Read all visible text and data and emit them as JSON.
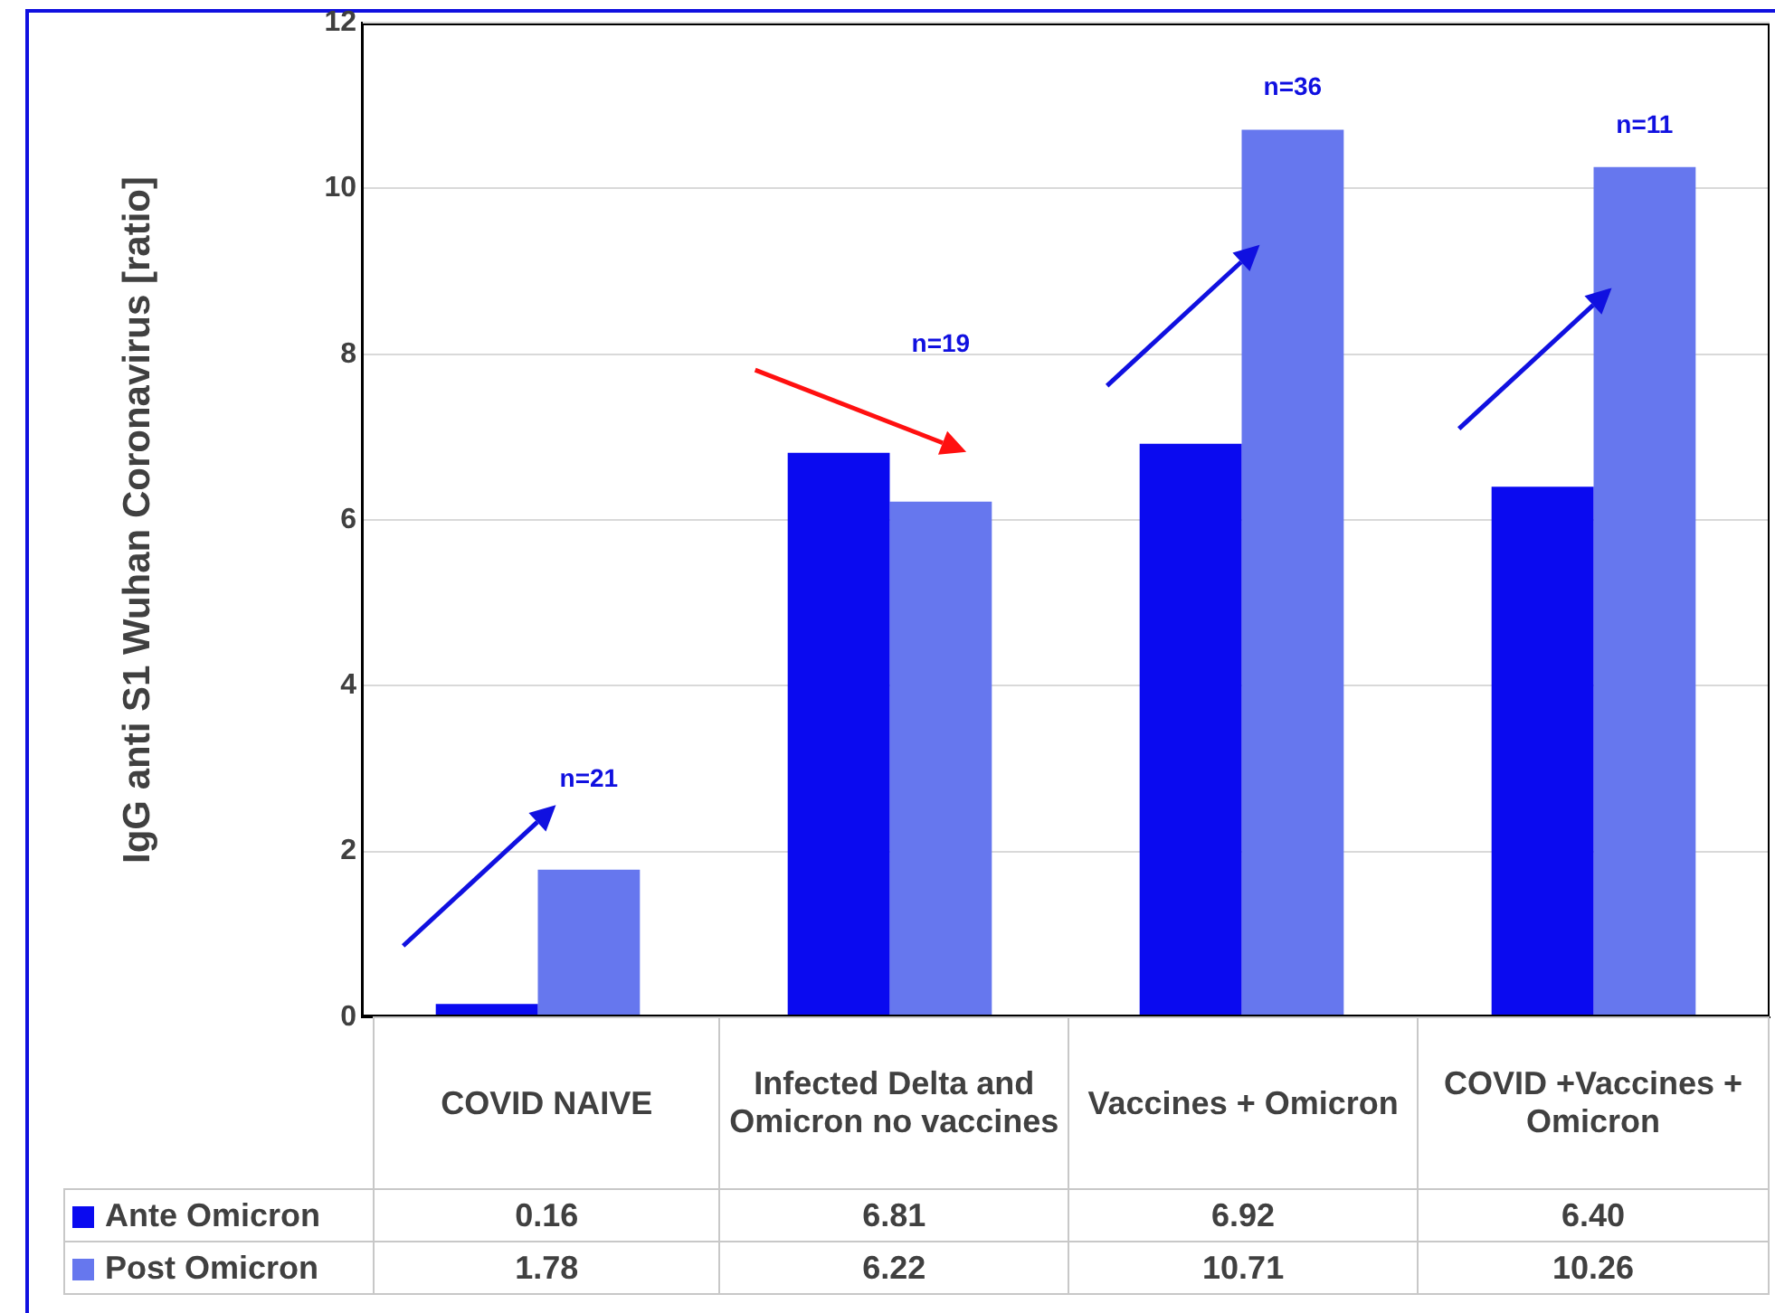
{
  "chart_data": {
    "type": "bar",
    "ylabel": "IgG anti S1 Wuhan Coronavirus [ratio]",
    "categories": [
      "COVID NAIVE",
      "Infected Delta and Omicron no vaccines",
      "Vaccines + Omicron",
      "COVID +Vaccines + Omicron"
    ],
    "series": [
      {
        "name": "Ante Omicron",
        "color": "#0a0af0",
        "values": [
          0.16,
          6.81,
          6.92,
          6.4
        ],
        "value_labels": [
          "0.16",
          "6.81",
          "6.92",
          "6.40"
        ]
      },
      {
        "name": "Post Omicron",
        "color": "#6677ee",
        "values": [
          1.78,
          6.22,
          10.71,
          10.26
        ],
        "value_labels": [
          "1.78",
          "6.22",
          "10.71",
          "10.26"
        ]
      }
    ],
    "ylim": [
      0,
      12
    ],
    "yticks": [
      0,
      2,
      4,
      6,
      8,
      10,
      12
    ],
    "grid": "y",
    "legend": "bottom",
    "annotations": [
      "n=21",
      "n=19",
      "n=36",
      "n=11"
    ]
  }
}
